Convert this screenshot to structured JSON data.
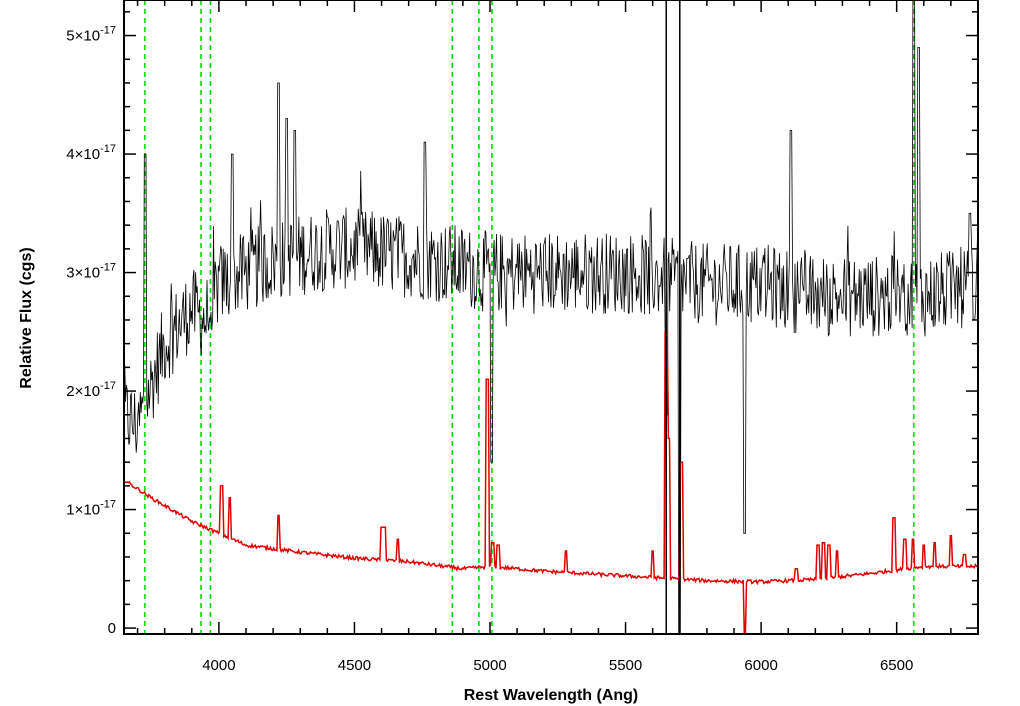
{
  "chart_data": {
    "type": "line",
    "xlabel": "Rest Wavelength (Ang)",
    "ylabel": "Relative Flux (cgs)",
    "xlim": [
      3650,
      6800
    ],
    "ylim": [
      -0.05,
      5.3
    ],
    "y_multiplier_label": "×10",
    "y_exponent": "-17",
    "x_ticks": [
      4000,
      4500,
      5000,
      5500,
      6000,
      6500
    ],
    "x_tick_labels": [
      "4000",
      "4500",
      "5000",
      "5500",
      "6000",
      "6500"
    ],
    "y_ticks": [
      0,
      1,
      2,
      3,
      4,
      5
    ],
    "y_tick_labels": [
      {
        "mantissa": "0",
        "exponent": ""
      },
      {
        "mantissa": "1",
        "exponent": "-17"
      },
      {
        "mantissa": "2",
        "exponent": "-17"
      },
      {
        "mantissa": "3",
        "exponent": "-17"
      },
      {
        "mantissa": "4",
        "exponent": "-17"
      },
      {
        "mantissa": "5",
        "exponent": "-17"
      }
    ],
    "grid": false,
    "line_markers_x": [
      3727,
      3934,
      3969,
      4861,
      4959,
      5007,
      6563
    ],
    "line_marker_color": "#00e000",
    "series": [
      {
        "color": "#000000",
        "style": "noisy",
        "anchors": [
          [
            3650,
            1.8
          ],
          [
            3700,
            1.7
          ],
          [
            3800,
            2.4
          ],
          [
            3900,
            2.7
          ],
          [
            3950,
            2.6
          ],
          [
            4000,
            2.9
          ],
          [
            4200,
            3.1
          ],
          [
            4400,
            3.2
          ],
          [
            4500,
            3.2
          ],
          [
            4800,
            3.1
          ],
          [
            5000,
            3.0
          ],
          [
            5200,
            3.0
          ],
          [
            5500,
            3.0
          ],
          [
            5800,
            2.9
          ],
          [
            6000,
            2.9
          ],
          [
            6200,
            2.8
          ],
          [
            6400,
            2.8
          ],
          [
            6600,
            2.8
          ],
          [
            6800,
            2.9
          ]
        ],
        "features": [
          [
            3727,
            4.0
          ],
          [
            4220,
            4.6
          ],
          [
            4250,
            4.3
          ],
          [
            4280,
            4.2
          ],
          [
            4050,
            4.0
          ],
          [
            4760,
            4.1
          ],
          [
            5005,
            1.4
          ],
          [
            5650,
            1.8
          ],
          [
            5700,
            -0.1
          ],
          [
            5940,
            0.8
          ],
          [
            6110,
            4.2
          ],
          [
            6562,
            5.3
          ],
          [
            6580,
            4.9
          ],
          [
            6770,
            3.5
          ],
          [
            6785,
            2.6
          ]
        ],
        "ylim_noise": 0.35
      },
      {
        "color": "#e00000",
        "style": "smooth",
        "anchors": [
          [
            3650,
            1.25
          ],
          [
            3750,
            1.1
          ],
          [
            3900,
            0.9
          ],
          [
            4000,
            0.8
          ],
          [
            4100,
            0.7
          ],
          [
            4300,
            0.64
          ],
          [
            4500,
            0.59
          ],
          [
            4700,
            0.56
          ],
          [
            4900,
            0.5
          ],
          [
            5000,
            0.52
          ],
          [
            5200,
            0.48
          ],
          [
            5500,
            0.44
          ],
          [
            5800,
            0.4
          ],
          [
            6000,
            0.39
          ],
          [
            6200,
            0.41
          ],
          [
            6400,
            0.46
          ],
          [
            6600,
            0.52
          ],
          [
            6800,
            0.52
          ]
        ],
        "features": [
          [
            4010,
            1.2
          ],
          [
            4040,
            1.1
          ],
          [
            4220,
            0.95
          ],
          [
            4600,
            0.85
          ],
          [
            4610,
            0.85
          ],
          [
            4660,
            0.75
          ],
          [
            4990,
            2.1
          ],
          [
            5010,
            0.72
          ],
          [
            5030,
            0.7
          ],
          [
            5280,
            0.65
          ],
          [
            5600,
            0.65
          ],
          [
            5650,
            2.5
          ],
          [
            5660,
            1.6
          ],
          [
            5705,
            1.4
          ],
          [
            5940,
            -0.05
          ],
          [
            6130,
            0.5
          ],
          [
            6210,
            0.7
          ],
          [
            6230,
            0.72
          ],
          [
            6250,
            0.7
          ],
          [
            6280,
            0.65
          ],
          [
            6490,
            0.93
          ],
          [
            6530,
            0.75
          ],
          [
            6560,
            0.75
          ],
          [
            6600,
            0.7
          ],
          [
            6640,
            0.72
          ],
          [
            6700,
            0.78
          ],
          [
            6750,
            0.62
          ]
        ]
      }
    ],
    "vertical_lines_black": [
      5650,
      5700
    ]
  }
}
